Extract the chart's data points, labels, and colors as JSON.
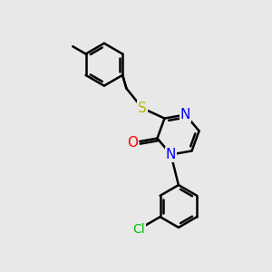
{
  "background_color": "#e8e8e8",
  "bond_color": "#000000",
  "bond_width": 1.8,
  "atom_colors": {
    "N": "#0000ff",
    "O": "#ff0000",
    "S": "#b8b800",
    "Cl": "#00bb00",
    "C": "#000000"
  },
  "font_size": 10,
  "fig_width": 3.0,
  "fig_height": 3.0,
  "dpi": 100
}
